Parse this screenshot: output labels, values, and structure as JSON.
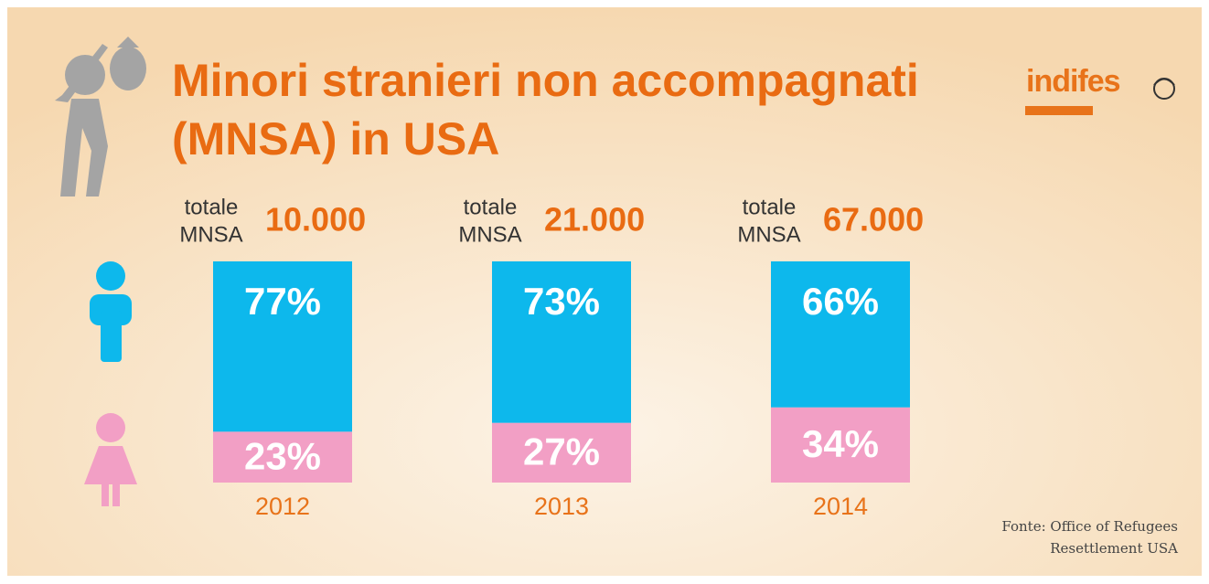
{
  "chart_data": {
    "type": "bar",
    "title": "Minori stranieri non accompagnati (MNSA) in USA",
    "logo": "indifes",
    "source": "Fonte: Office of Refugees Resettlement USA",
    "total_caption": [
      "totale",
      "MNSA"
    ],
    "categories": [
      "2012",
      "2013",
      "2014"
    ],
    "totals": {
      "values": [
        10000,
        21000,
        67000
      ],
      "value_labels": [
        "10.000",
        "21.000",
        "67.000"
      ]
    },
    "stacked": true,
    "ylim": [
      0,
      100
    ],
    "series": [
      {
        "color": "#f29fc5",
        "values": [
          23,
          27,
          34
        ],
        "value_labels": [
          "23%",
          "27%",
          "34%"
        ]
      },
      {
        "color": "#0db8ec",
        "values": [
          77,
          73,
          66
        ],
        "value_labels": [
          "77%",
          "73%",
          "66%"
        ]
      }
    ]
  }
}
